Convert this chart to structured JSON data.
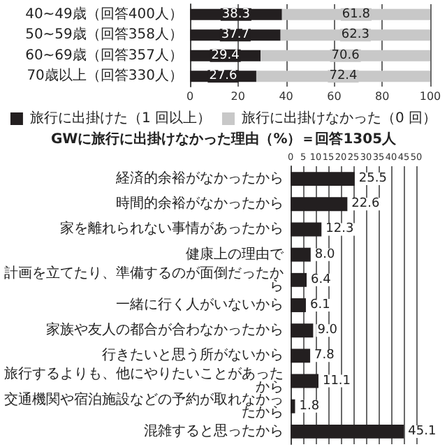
{
  "chart_data": [
    {
      "type": "bar",
      "orientation": "horizontal",
      "stacked": true,
      "categories": [
        "40~49歳（回答400人）",
        "50~59歳（回答358人）",
        "60~69歳（回答357人）",
        "70歳以上（回答330人）"
      ],
      "series": [
        {
          "name": "旅行に出掛けた（1 回以上）",
          "color": "#231f20",
          "values": [
            38.3,
            37.7,
            29.4,
            27.6
          ]
        },
        {
          "name": "旅行に出掛けなかった（0 回）",
          "color": "#c8c8c8",
          "values": [
            61.8,
            62.3,
            70.6,
            72.4
          ]
        }
      ],
      "xlim": [
        0,
        100
      ],
      "xticks": [
        0,
        20,
        40,
        60,
        80,
        100
      ],
      "grid": "x",
      "legend": "bottom",
      "data_labels": true
    },
    {
      "type": "bar",
      "orientation": "horizontal",
      "title": "GWに旅行に出掛けなかった理由（%）＝回答1305人",
      "categories": [
        "経済的余裕がなかったから",
        "時間的余裕がなかったから",
        "家を離れられない事情があったから",
        "健康上の理由で",
        "計画を立てたり、準備するのが面倒だったから",
        "一緒に行く人がいないから",
        "家族や友人の都合が合わなかったから",
        "行きたいと思う所がないから",
        "旅行するよりも、他にやりたいことがあったから",
        "交通機関や宿泊施設などの予約が取れなかったから",
        "混雑すると思ったから"
      ],
      "values": [
        25.5,
        22.6,
        12.3,
        8.0,
        6.4,
        6.1,
        9.0,
        7.8,
        11.1,
        1.8,
        45.1
      ],
      "value_labels": [
        "25.5",
        "22.6",
        "12.3",
        "8.0",
        "6.4",
        "6.1",
        "9.0",
        "7.8",
        "11.1",
        "1.8",
        "45.1"
      ],
      "color": "#231f20",
      "xlim": [
        0,
        50
      ],
      "xticks": [
        0,
        5,
        10,
        15,
        20,
        25,
        30,
        35,
        40,
        45,
        50
      ],
      "grid": "x"
    }
  ]
}
